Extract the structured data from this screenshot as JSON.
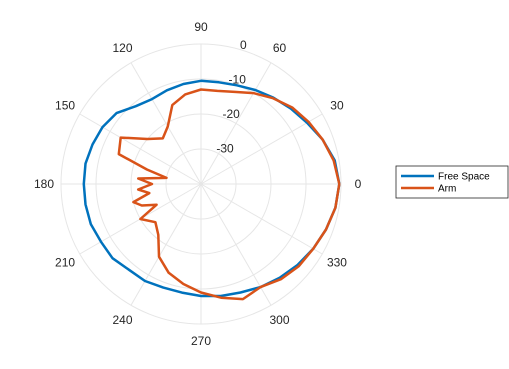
{
  "chart_data": {
    "type": "polar-line",
    "title": "",
    "theta_unit": "degrees",
    "r_ticks": [
      -30,
      -20,
      -10,
      0
    ],
    "r_range": [
      -40,
      0
    ],
    "theta_ticks": [
      0,
      30,
      60,
      90,
      120,
      150,
      180,
      210,
      240,
      270,
      300,
      330
    ],
    "grid": true,
    "legend_position": "right",
    "series": [
      {
        "name": "Free Space",
        "color": "#0072BD",
        "points": [
          {
            "theta": 0,
            "r": -0.5
          },
          {
            "theta": 10,
            "r": -1.2
          },
          {
            "theta": 20,
            "r": -3
          },
          {
            "theta": 30,
            "r": -5
          },
          {
            "theta": 40,
            "r": -6.5
          },
          {
            "theta": 50,
            "r": -7.8
          },
          {
            "theta": 60,
            "r": -9
          },
          {
            "theta": 70,
            "r": -10
          },
          {
            "theta": 80,
            "r": -10.5
          },
          {
            "theta": 90,
            "r": -10.5
          },
          {
            "theta": 100,
            "r": -11
          },
          {
            "theta": 110,
            "r": -11.5
          },
          {
            "theta": 120,
            "r": -12
          },
          {
            "theta": 130,
            "r": -11
          },
          {
            "theta": 140,
            "r": -8.5
          },
          {
            "theta": 150,
            "r": -7.5
          },
          {
            "theta": 160,
            "r": -7
          },
          {
            "theta": 170,
            "r": -6.5
          },
          {
            "theta": 180,
            "r": -6.5
          },
          {
            "theta": 190,
            "r": -6.5
          },
          {
            "theta": 200,
            "r": -6.5
          },
          {
            "theta": 210,
            "r": -7
          },
          {
            "theta": 220,
            "r": -7
          },
          {
            "theta": 230,
            "r": -8
          },
          {
            "theta": 240,
            "r": -8
          },
          {
            "theta": 250,
            "r": -8.5
          },
          {
            "theta": 260,
            "r": -8.5
          },
          {
            "theta": 270,
            "r": -8
          },
          {
            "theta": 280,
            "r": -7.5
          },
          {
            "theta": 290,
            "r": -7
          },
          {
            "theta": 300,
            "r": -6
          },
          {
            "theta": 310,
            "r": -5
          },
          {
            "theta": 320,
            "r": -4
          },
          {
            "theta": 330,
            "r": -3
          },
          {
            "theta": 340,
            "r": -2
          },
          {
            "theta": 350,
            "r": -1
          }
        ]
      },
      {
        "name": "Arm",
        "color": "#D95319",
        "points": [
          {
            "theta": 0,
            "r": -0.5
          },
          {
            "theta": 10,
            "r": -1.5
          },
          {
            "theta": 20,
            "r": -3
          },
          {
            "theta": 30,
            "r": -4.5
          },
          {
            "theta": 40,
            "r": -6
          },
          {
            "theta": 50,
            "r": -8
          },
          {
            "theta": 60,
            "r": -10
          },
          {
            "theta": 70,
            "r": -12
          },
          {
            "theta": 80,
            "r": -13
          },
          {
            "theta": 90,
            "r": -13
          },
          {
            "theta": 100,
            "r": -14
          },
          {
            "theta": 110,
            "r": -16
          },
          {
            "theta": 120,
            "r": -21
          },
          {
            "theta": 130,
            "r": -23
          },
          {
            "theta": 140,
            "r": -20
          },
          {
            "theta": 150,
            "r": -13.5
          },
          {
            "theta": 160,
            "r": -15
          },
          {
            "theta": 165,
            "r": -24
          },
          {
            "theta": 170,
            "r": -30
          },
          {
            "theta": 175,
            "r": -22
          },
          {
            "theta": 180,
            "r": -26
          },
          {
            "theta": 185,
            "r": -22
          },
          {
            "theta": 190,
            "r": -25
          },
          {
            "theta": 195,
            "r": -20
          },
          {
            "theta": 200,
            "r": -22
          },
          {
            "theta": 205,
            "r": -26
          },
          {
            "theta": 210,
            "r": -20
          },
          {
            "theta": 220,
            "r": -23
          },
          {
            "theta": 230,
            "r": -21
          },
          {
            "theta": 240,
            "r": -16
          },
          {
            "theta": 250,
            "r": -13
          },
          {
            "theta": 260,
            "r": -11
          },
          {
            "theta": 270,
            "r": -9
          },
          {
            "theta": 280,
            "r": -7
          },
          {
            "theta": 290,
            "r": -5
          },
          {
            "theta": 300,
            "r": -6
          },
          {
            "theta": 310,
            "r": -4.5
          },
          {
            "theta": 320,
            "r": -3.5
          },
          {
            "theta": 330,
            "r": -3
          },
          {
            "theta": 340,
            "r": -2
          },
          {
            "theta": 350,
            "r": -1
          }
        ]
      }
    ]
  }
}
